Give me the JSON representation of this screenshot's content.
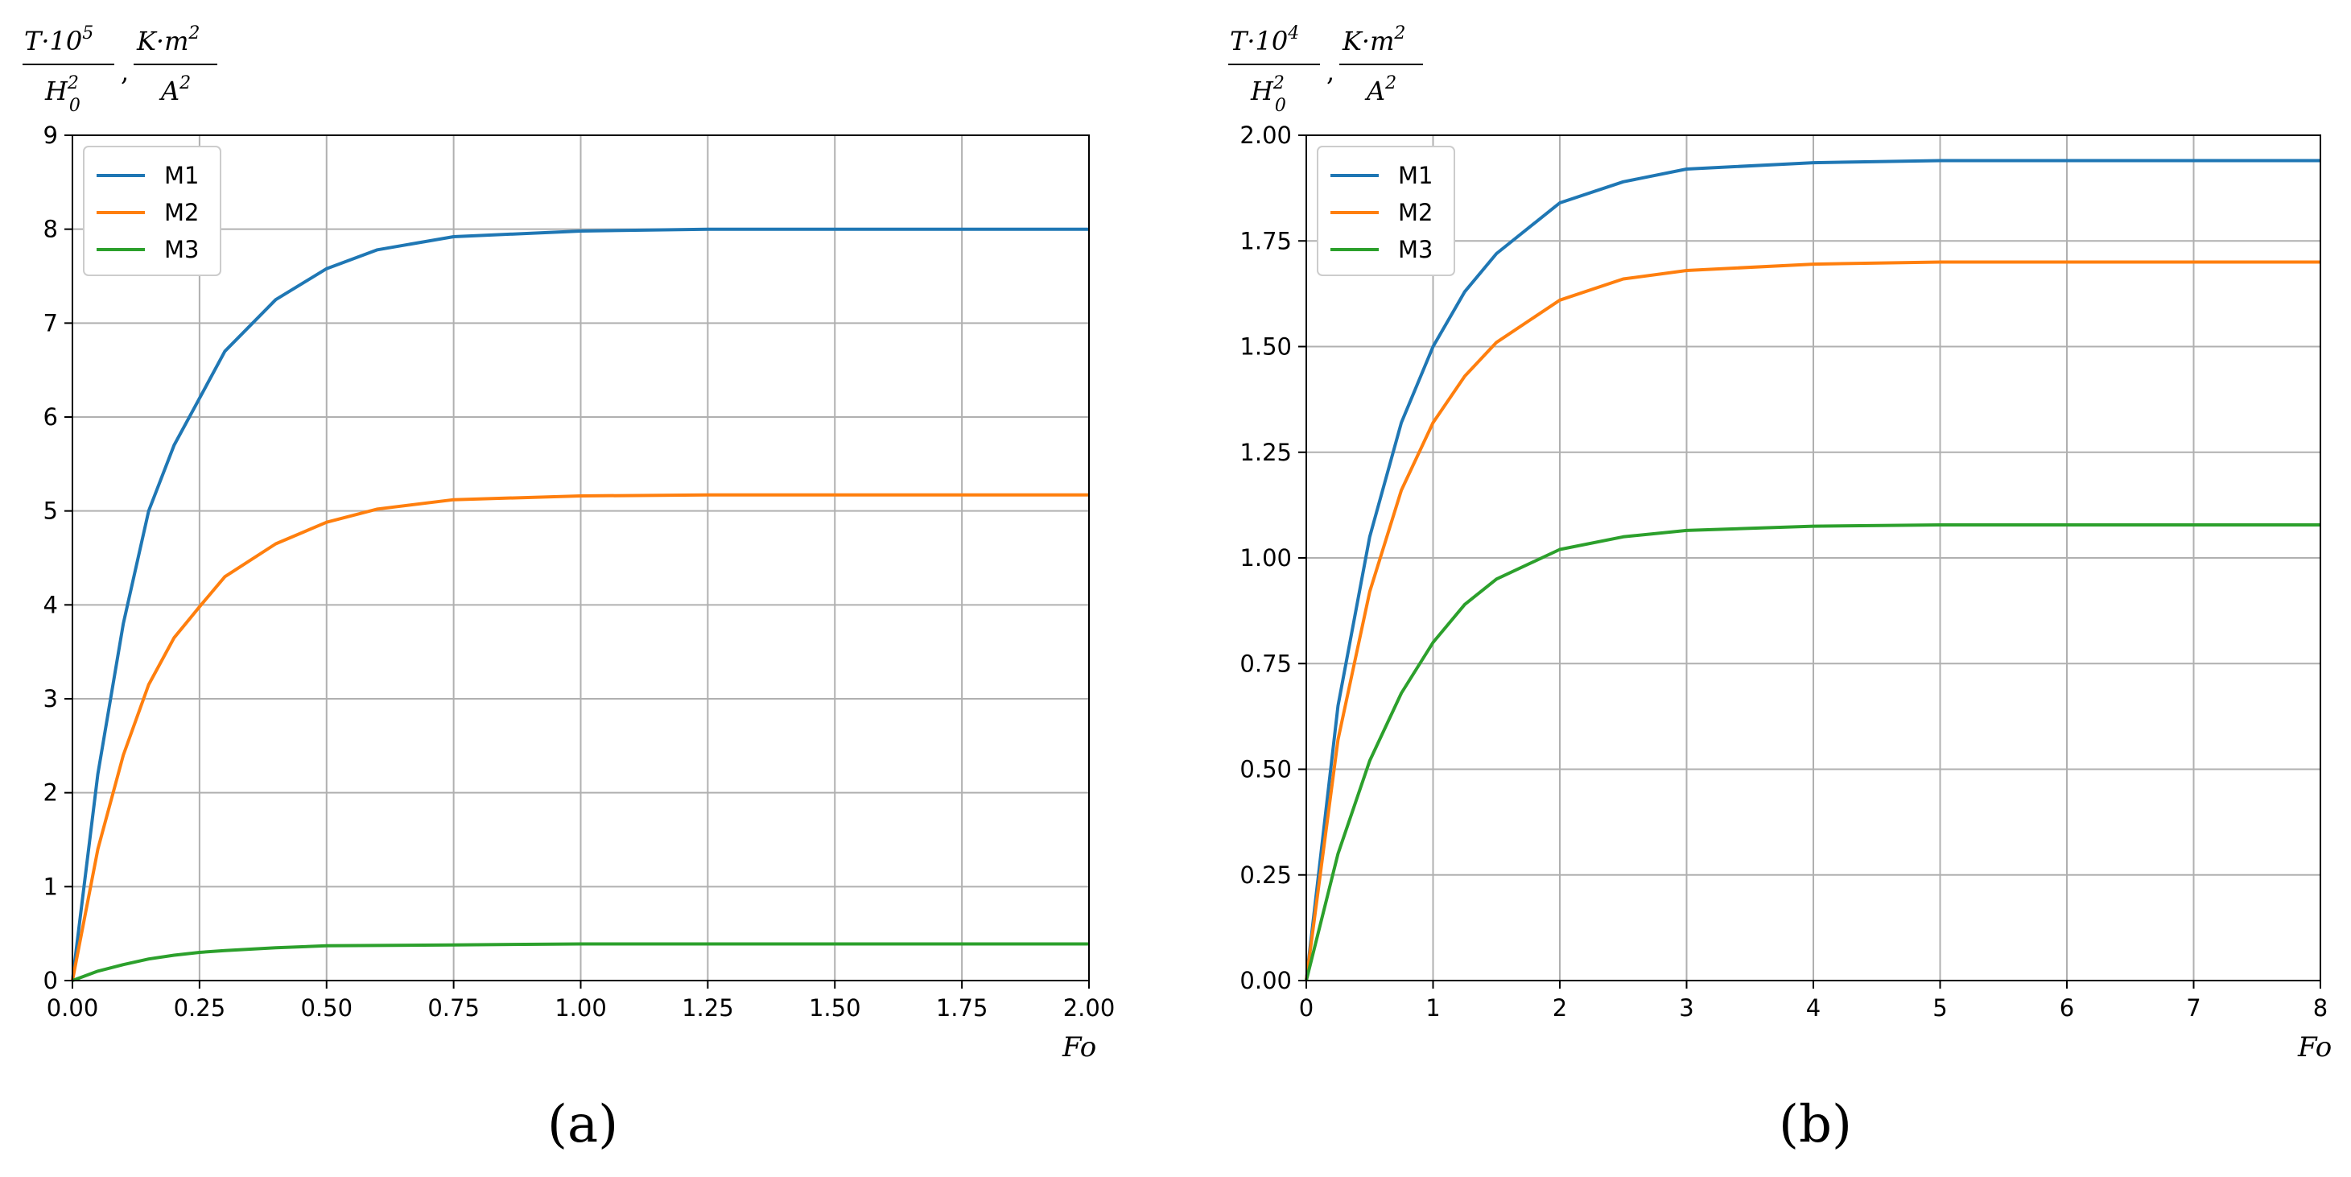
{
  "colors": {
    "M1": "#1f77b4",
    "M2": "#ff7f0e",
    "M3": "#2ca02c",
    "grid": "#b0b0b0"
  },
  "chart_data": [
    {
      "type": "line",
      "panel_label": "(a)",
      "ylabel": {
        "base": "T·10",
        "exp": "5",
        "den": "H",
        "den_sup": "2",
        "den_sub": "0",
        "comma": ",",
        "unit_num": "K·m",
        "unit_num_exp": "2",
        "unit_den": "A",
        "unit_den_exp": "2"
      },
      "xlabel": "Fo",
      "xlim": [
        0,
        2
      ],
      "ylim": [
        0,
        9
      ],
      "xticks": [
        0,
        0.25,
        0.5,
        0.75,
        1.0,
        1.25,
        1.5,
        1.75,
        2.0
      ],
      "xtick_labels": [
        "0.00",
        "0.25",
        "0.50",
        "0.75",
        "1.00",
        "1.25",
        "1.50",
        "1.75",
        "2.00"
      ],
      "yticks": [
        0,
        1,
        2,
        3,
        4,
        5,
        6,
        7,
        8,
        9
      ],
      "ytick_labels": [
        "0",
        "1",
        "2",
        "3",
        "4",
        "5",
        "6",
        "7",
        "8",
        "9"
      ],
      "grid": true,
      "legend": "top-left",
      "series": [
        {
          "name": "M1",
          "x": [
            0,
            0.05,
            0.1,
            0.15,
            0.2,
            0.25,
            0.3,
            0.4,
            0.5,
            0.6,
            0.75,
            1.0,
            1.25,
            1.5,
            1.75,
            2.0
          ],
          "y": [
            0,
            2.2,
            3.8,
            5.0,
            5.7,
            6.2,
            6.7,
            7.25,
            7.58,
            7.78,
            7.92,
            7.98,
            8.0,
            8.0,
            8.0,
            8.0
          ]
        },
        {
          "name": "M2",
          "x": [
            0,
            0.05,
            0.1,
            0.15,
            0.2,
            0.25,
            0.3,
            0.4,
            0.5,
            0.6,
            0.75,
            1.0,
            1.25,
            1.5,
            1.75,
            2.0
          ],
          "y": [
            0,
            1.4,
            2.4,
            3.15,
            3.65,
            3.98,
            4.3,
            4.65,
            4.88,
            5.02,
            5.12,
            5.16,
            5.17,
            5.17,
            5.17,
            5.17
          ]
        },
        {
          "name": "M3",
          "x": [
            0,
            0.05,
            0.1,
            0.15,
            0.2,
            0.25,
            0.3,
            0.4,
            0.5,
            0.75,
            1.0,
            1.25,
            1.5,
            1.75,
            2.0
          ],
          "y": [
            0,
            0.1,
            0.17,
            0.23,
            0.27,
            0.3,
            0.32,
            0.35,
            0.37,
            0.38,
            0.39,
            0.39,
            0.39,
            0.39,
            0.39
          ]
        }
      ]
    },
    {
      "type": "line",
      "panel_label": "(b)",
      "ylabel": {
        "base": "T·10",
        "exp": "4",
        "den": "H",
        "den_sup": "2",
        "den_sub": "0",
        "comma": ",",
        "unit_num": "K·m",
        "unit_num_exp": "2",
        "unit_den": "A",
        "unit_den_exp": "2"
      },
      "xlabel": "Fo",
      "xlim": [
        0,
        8
      ],
      "ylim": [
        0,
        2
      ],
      "xticks": [
        0,
        1,
        2,
        3,
        4,
        5,
        6,
        7,
        8
      ],
      "xtick_labels": [
        "0",
        "1",
        "2",
        "3",
        "4",
        "5",
        "6",
        "7",
        "8"
      ],
      "yticks": [
        0,
        0.25,
        0.5,
        0.75,
        1.0,
        1.25,
        1.5,
        1.75,
        2.0
      ],
      "ytick_labels": [
        "0.00",
        "0.25",
        "0.50",
        "0.75",
        "1.00",
        "1.25",
        "1.50",
        "1.75",
        "2.00"
      ],
      "grid": true,
      "legend": "top-left",
      "series": [
        {
          "name": "M1",
          "x": [
            0,
            0.25,
            0.5,
            0.75,
            1,
            1.25,
            1.5,
            2,
            2.5,
            3,
            4,
            5,
            6,
            7,
            8
          ],
          "y": [
            0,
            0.65,
            1.05,
            1.32,
            1.5,
            1.63,
            1.72,
            1.84,
            1.89,
            1.92,
            1.935,
            1.94,
            1.94,
            1.94,
            1.94
          ]
        },
        {
          "name": "M2",
          "x": [
            0,
            0.25,
            0.5,
            0.75,
            1,
            1.25,
            1.5,
            2,
            2.5,
            3,
            4,
            5,
            6,
            7,
            8
          ],
          "y": [
            0,
            0.57,
            0.92,
            1.16,
            1.32,
            1.43,
            1.51,
            1.61,
            1.66,
            1.68,
            1.695,
            1.7,
            1.7,
            1.7,
            1.7
          ]
        },
        {
          "name": "M3",
          "x": [
            0,
            0.25,
            0.5,
            0.75,
            1,
            1.25,
            1.5,
            2,
            2.5,
            3,
            4,
            5,
            6,
            7,
            8
          ],
          "y": [
            0,
            0.3,
            0.52,
            0.68,
            0.8,
            0.89,
            0.95,
            1.02,
            1.05,
            1.065,
            1.075,
            1.078,
            1.078,
            1.078,
            1.078
          ]
        }
      ]
    }
  ]
}
